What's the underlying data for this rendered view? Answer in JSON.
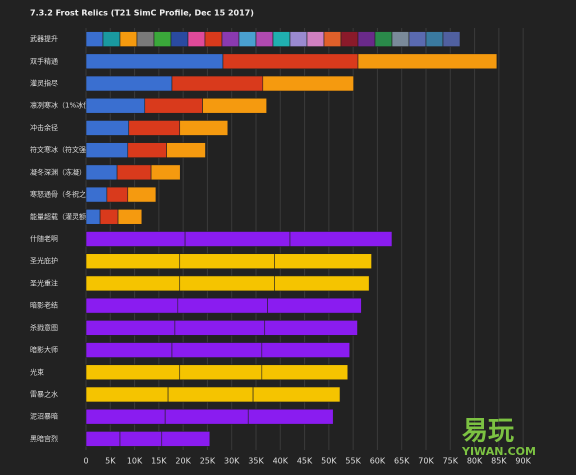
{
  "chart_data": {
    "type": "stacked-hbar",
    "title": "7.3.2 Frost Relics (T21 SimC Profile, Dec 15 2017)",
    "xlim": [
      0,
      98000
    ],
    "xticks": [
      0,
      {
        "value": 5000,
        "label": "5K"
      },
      {
        "value": 10000,
        "label": "10K"
      },
      {
        "value": 15000,
        "label": "15K"
      },
      {
        "value": 20000,
        "label": "20K"
      },
      {
        "value": 25000,
        "label": "25K"
      },
      {
        "value": 30000,
        "label": "30K"
      },
      {
        "value": 35000,
        "label": "35K"
      },
      {
        "value": 40000,
        "label": "40K"
      },
      {
        "value": 45000,
        "label": "45K"
      },
      {
        "value": 50000,
        "label": "50K"
      },
      {
        "value": 55000,
        "label": "55K"
      },
      {
        "value": 60000,
        "label": "60K"
      },
      {
        "value": 65000,
        "label": "65K"
      },
      {
        "value": 70000,
        "label": "70K"
      },
      {
        "value": 75000,
        "label": "75K"
      },
      {
        "value": 80000,
        "label": "80K"
      },
      {
        "value": 85000,
        "label": "85K"
      },
      {
        "value": 90000,
        "label": "90K"
      }
    ],
    "grid": true,
    "rows": [
      {
        "label": "武器提升",
        "segments": [
          {
            "value": 3500,
            "color": "#3a6fd0"
          },
          {
            "value": 3500,
            "color": "#1a9aa0"
          },
          {
            "value": 3500,
            "color": "#f59a0f"
          },
          {
            "value": 3500,
            "color": "#7a7a7a"
          },
          {
            "value": 3500,
            "color": "#3aa83a"
          },
          {
            "value": 3500,
            "color": "#2a4aa0"
          },
          {
            "value": 3500,
            "color": "#e04a9a"
          },
          {
            "value": 3500,
            "color": "#d93a1c"
          },
          {
            "value": 3500,
            "color": "#8a3ab0"
          },
          {
            "value": 3500,
            "color": "#4aa0d0"
          },
          {
            "value": 3500,
            "color": "#b04ab0"
          },
          {
            "value": 3500,
            "color": "#20b0b0"
          },
          {
            "value": 3500,
            "color": "#9a8ad0"
          },
          {
            "value": 3500,
            "color": "#d080c0"
          },
          {
            "value": 3500,
            "color": "#e0602a"
          },
          {
            "value": 3500,
            "color": "#8a1a2a"
          },
          {
            "value": 3500,
            "color": "#6a2a8a"
          },
          {
            "value": 3500,
            "color": "#2a8a4a"
          },
          {
            "value": 3500,
            "color": "#7a8a9a"
          },
          {
            "value": 3500,
            "color": "#5a6ab0"
          },
          {
            "value": 3500,
            "color": "#3a7aa0"
          },
          {
            "value": 3500,
            "color": "#5060a0"
          }
        ]
      },
      {
        "label": "双手精通",
        "segments": [
          {
            "value": 28200,
            "color": "#3a6fd0"
          },
          {
            "value": 27800,
            "color": "#d93a1c"
          },
          {
            "value": 28600,
            "color": "#f59a0f"
          }
        ]
      },
      {
        "label": "灌灵指尽",
        "segments": [
          {
            "value": 17700,
            "color": "#3a6fd0"
          },
          {
            "value": 18700,
            "color": "#d93a1c"
          },
          {
            "value": 18700,
            "color": "#f59a0f"
          }
        ]
      },
      {
        "label": "凛冽寒冰（1%冰伤）",
        "segments": [
          {
            "value": 12100,
            "color": "#3a6fd0"
          },
          {
            "value": 11900,
            "color": "#d93a1c"
          },
          {
            "value": 13200,
            "color": "#f59a0f"
          }
        ]
      },
      {
        "label": "冲击余径",
        "segments": [
          {
            "value": 8800,
            "color": "#3a6fd0"
          },
          {
            "value": 10500,
            "color": "#d93a1c"
          },
          {
            "value": 9900,
            "color": "#f59a0f"
          }
        ]
      },
      {
        "label": "符文寒冰（符文强化）",
        "segments": [
          {
            "value": 8600,
            "color": "#3a6fd0"
          },
          {
            "value": 8000,
            "color": "#d93a1c"
          },
          {
            "value": 8000,
            "color": "#f59a0f"
          }
        ]
      },
      {
        "label": "凝冬深渊（冻凝）",
        "segments": [
          {
            "value": 6400,
            "color": "#3a6fd0"
          },
          {
            "value": 7000,
            "color": "#d93a1c"
          },
          {
            "value": 6000,
            "color": "#f59a0f"
          }
        ]
      },
      {
        "label": "寒怒通骨（冬祝之霜）",
        "segments": [
          {
            "value": 4300,
            "color": "#3a6fd0"
          },
          {
            "value": 4300,
            "color": "#d93a1c"
          },
          {
            "value": 5800,
            "color": "#f59a0f"
          }
        ]
      },
      {
        "label": "能量超载（灌灵额外能量）",
        "segments": [
          {
            "value": 2900,
            "color": "#3a6fd0"
          },
          {
            "value": 3700,
            "color": "#d93a1c"
          },
          {
            "value": 4900,
            "color": "#f59a0f"
          }
        ]
      },
      {
        "label": "什随老啊",
        "segments": [
          {
            "value": 20400,
            "color": "#8a1cf0"
          },
          {
            "value": 21600,
            "color": "#8a1cf0"
          },
          {
            "value": 21000,
            "color": "#8a1cf0"
          }
        ]
      },
      {
        "label": "圣光庇护",
        "segments": [
          {
            "value": 19300,
            "color": "#f5c400"
          },
          {
            "value": 19500,
            "color": "#f5c400"
          },
          {
            "value": 20000,
            "color": "#f5c400"
          }
        ]
      },
      {
        "label": "圣光重注",
        "segments": [
          {
            "value": 19300,
            "color": "#f5c400"
          },
          {
            "value": 19500,
            "color": "#f5c400"
          },
          {
            "value": 19500,
            "color": "#f5c400"
          }
        ]
      },
      {
        "label": "暗影老结",
        "segments": [
          {
            "value": 18900,
            "color": "#8a1cf0"
          },
          {
            "value": 18500,
            "color": "#8a1cf0"
          },
          {
            "value": 19300,
            "color": "#8a1cf0"
          }
        ]
      },
      {
        "label": "杀戮意图",
        "segments": [
          {
            "value": 18300,
            "color": "#8a1cf0"
          },
          {
            "value": 18500,
            "color": "#8a1cf0"
          },
          {
            "value": 19100,
            "color": "#8a1cf0"
          }
        ]
      },
      {
        "label": "暗影大师",
        "segments": [
          {
            "value": 17700,
            "color": "#8a1cf0"
          },
          {
            "value": 18500,
            "color": "#8a1cf0"
          },
          {
            "value": 18100,
            "color": "#8a1cf0"
          }
        ]
      },
      {
        "label": "光束",
        "segments": [
          {
            "value": 19300,
            "color": "#f5c400"
          },
          {
            "value": 16900,
            "color": "#f5c400"
          },
          {
            "value": 17700,
            "color": "#f5c400"
          }
        ]
      },
      {
        "label": "雷暴之水",
        "segments": [
          {
            "value": 16900,
            "color": "#f5c400"
          },
          {
            "value": 17500,
            "color": "#f5c400"
          },
          {
            "value": 17900,
            "color": "#f5c400"
          }
        ]
      },
      {
        "label": "泥沼暴暗",
        "segments": [
          {
            "value": 16300,
            "color": "#8a1cf0"
          },
          {
            "value": 17100,
            "color": "#8a1cf0"
          },
          {
            "value": 17500,
            "color": "#8a1cf0"
          }
        ]
      },
      {
        "label": "黑暗宫烈",
        "segments": [
          {
            "value": 7000,
            "color": "#8a1cf0"
          },
          {
            "value": 8600,
            "color": "#8a1cf0"
          },
          {
            "value": 9900,
            "color": "#8a1cf0"
          }
        ]
      }
    ],
    "annotations": [
      "易玩",
      "YIWAN.COM"
    ]
  }
}
